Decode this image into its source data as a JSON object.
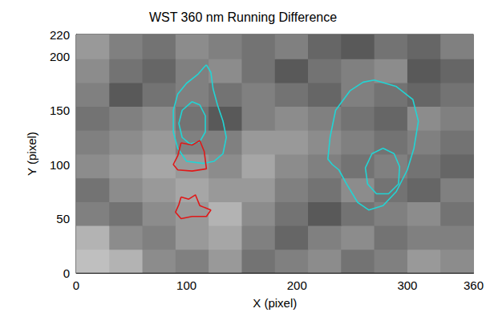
{
  "chart_data": {
    "type": "contour",
    "title": "WST 360 nm Running Difference",
    "x_label": "X (pixel)",
    "y_label": "Y (pixel)",
    "xlim": [
      0,
      360
    ],
    "ylim": [
      0,
      220
    ],
    "xticks": [
      0,
      100,
      200,
      300
    ],
    "yticks": [
      0,
      50,
      100,
      150,
      200
    ],
    "grid": false,
    "image_x": [
      15,
      45,
      75,
      105,
      135,
      165,
      195,
      225,
      255,
      285,
      315,
      345
    ],
    "image_y": [
      11,
      33,
      55,
      77,
      99,
      121,
      143,
      165,
      187,
      209
    ],
    "image_range": [
      0,
      1
    ],
    "image_values": [
      [
        0.75,
        0.7,
        0.55,
        0.5,
        0.6,
        0.45,
        0.5,
        0.55,
        0.45,
        0.5,
        0.6,
        0.55
      ],
      [
        0.7,
        0.55,
        0.5,
        0.6,
        0.65,
        0.5,
        0.4,
        0.5,
        0.55,
        0.45,
        0.5,
        0.5
      ],
      [
        0.5,
        0.45,
        0.55,
        0.6,
        0.7,
        0.55,
        0.45,
        0.35,
        0.45,
        0.5,
        0.55,
        0.45
      ],
      [
        0.45,
        0.55,
        0.6,
        0.65,
        0.6,
        0.6,
        0.5,
        0.45,
        0.55,
        0.45,
        0.4,
        0.5
      ],
      [
        0.55,
        0.6,
        0.65,
        0.6,
        0.55,
        0.65,
        0.55,
        0.5,
        0.45,
        0.5,
        0.45,
        0.4
      ],
      [
        0.5,
        0.55,
        0.6,
        0.5,
        0.5,
        0.6,
        0.6,
        0.55,
        0.5,
        0.45,
        0.5,
        0.45
      ],
      [
        0.45,
        0.5,
        0.55,
        0.45,
        0.35,
        0.5,
        0.55,
        0.5,
        0.45,
        0.4,
        0.55,
        0.5
      ],
      [
        0.5,
        0.35,
        0.45,
        0.5,
        0.45,
        0.5,
        0.45,
        0.4,
        0.5,
        0.45,
        0.4,
        0.45
      ],
      [
        0.55,
        0.45,
        0.4,
        0.5,
        0.55,
        0.45,
        0.35,
        0.45,
        0.5,
        0.55,
        0.35,
        0.4
      ],
      [
        0.6,
        0.5,
        0.45,
        0.55,
        0.5,
        0.45,
        0.5,
        0.4,
        0.35,
        0.45,
        0.4,
        0.5
      ]
    ],
    "series": [
      {
        "color": "#22d4d4",
        "line_style": "solid",
        "marker": "none",
        "values": [
          [
            118,
            192
          ],
          [
            122,
            185
          ],
          [
            124,
            170
          ],
          [
            128,
            155
          ],
          [
            133,
            140
          ],
          [
            136,
            125
          ],
          [
            133,
            110
          ],
          [
            125,
            103
          ],
          [
            115,
            101
          ],
          [
            100,
            103
          ],
          [
            92,
            115
          ],
          [
            88,
            130
          ],
          [
            88,
            150
          ],
          [
            92,
            165
          ],
          [
            100,
            175
          ],
          [
            110,
            183
          ],
          [
            116,
            190
          ],
          [
            118,
            192
          ]
        ]
      },
      {
        "color": "#22d4d4",
        "line_style": "solid",
        "marker": "none",
        "values": [
          [
            105,
            158
          ],
          [
            112,
            155
          ],
          [
            117,
            145
          ],
          [
            117,
            130
          ],
          [
            112,
            121
          ],
          [
            103,
            119
          ],
          [
            96,
            125
          ],
          [
            93,
            138
          ],
          [
            96,
            150
          ],
          [
            105,
            158
          ]
        ]
      },
      {
        "color": "#22d4d4",
        "line_style": "solid",
        "marker": "none",
        "values": [
          [
            270,
            178
          ],
          [
            290,
            172
          ],
          [
            305,
            160
          ],
          [
            310,
            140
          ],
          [
            306,
            115
          ],
          [
            300,
            95
          ],
          [
            290,
            75
          ],
          [
            278,
            62
          ],
          [
            265,
            58
          ],
          [
            255,
            65
          ],
          [
            245,
            82
          ],
          [
            238,
            95
          ],
          [
            232,
            100
          ],
          [
            228,
            105
          ],
          [
            230,
            125
          ],
          [
            235,
            150
          ],
          [
            248,
            168
          ],
          [
            260,
            176
          ],
          [
            270,
            178
          ]
        ]
      },
      {
        "color": "#22d4d4",
        "line_style": "solid",
        "marker": "none",
        "values": [
          [
            278,
            115
          ],
          [
            288,
            110
          ],
          [
            293,
            98
          ],
          [
            292,
            82
          ],
          [
            283,
            73
          ],
          [
            272,
            73
          ],
          [
            264,
            82
          ],
          [
            262,
            97
          ],
          [
            268,
            110
          ],
          [
            278,
            115
          ]
        ]
      },
      {
        "color": "#e01818",
        "line_style": "solid",
        "marker": "none",
        "values": [
          [
            95,
            120
          ],
          [
            105,
            118
          ],
          [
            112,
            122
          ],
          [
            116,
            112
          ],
          [
            118,
            96
          ],
          [
            105,
            94
          ],
          [
            92,
            95
          ],
          [
            88,
            100
          ],
          [
            92,
            108
          ],
          [
            95,
            120
          ]
        ]
      },
      {
        "color": "#e01818",
        "line_style": "solid",
        "marker": "none",
        "values": [
          [
            95,
            70
          ],
          [
            102,
            68
          ],
          [
            108,
            72
          ],
          [
            112,
            62
          ],
          [
            122,
            58
          ],
          [
            118,
            52
          ],
          [
            105,
            52
          ],
          [
            95,
            50
          ],
          [
            90,
            56
          ],
          [
            93,
            63
          ],
          [
            95,
            70
          ]
        ]
      }
    ]
  }
}
